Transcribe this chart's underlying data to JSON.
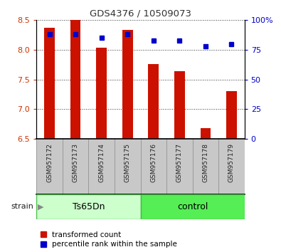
{
  "title": "GDS4376 / 10509073",
  "samples": [
    "GSM957172",
    "GSM957173",
    "GSM957174",
    "GSM957175",
    "GSM957176",
    "GSM957177",
    "GSM957178",
    "GSM957179"
  ],
  "red_values": [
    8.37,
    8.5,
    8.03,
    8.33,
    7.76,
    7.64,
    6.68,
    7.3
  ],
  "blue_values": [
    88,
    88,
    85,
    88,
    83,
    83,
    78,
    80
  ],
  "ylim_left": [
    6.5,
    8.5
  ],
  "ylim_right": [
    0,
    100
  ],
  "yticks_left": [
    6.5,
    7.0,
    7.5,
    8.0,
    8.5
  ],
  "yticks_right": [
    0,
    25,
    50,
    75,
    100
  ],
  "yticklabels_right": [
    "0",
    "25",
    "50",
    "75",
    "100%"
  ],
  "bar_color": "#cc1100",
  "dot_color": "#0000cc",
  "bar_bottom": 6.5,
  "group1_label": "Ts65Dn",
  "group2_label": "control",
  "group1_color": "#ccffcc",
  "group2_color": "#55ee55",
  "strain_label": "strain",
  "legend_red": "transformed count",
  "legend_blue": "percentile rank within the sample",
  "bg_plot": "#ffffff",
  "bg_xtick": "#c8c8c8",
  "title_color": "#333333",
  "left_tick_color": "#cc3300",
  "right_tick_color": "#0000cc"
}
